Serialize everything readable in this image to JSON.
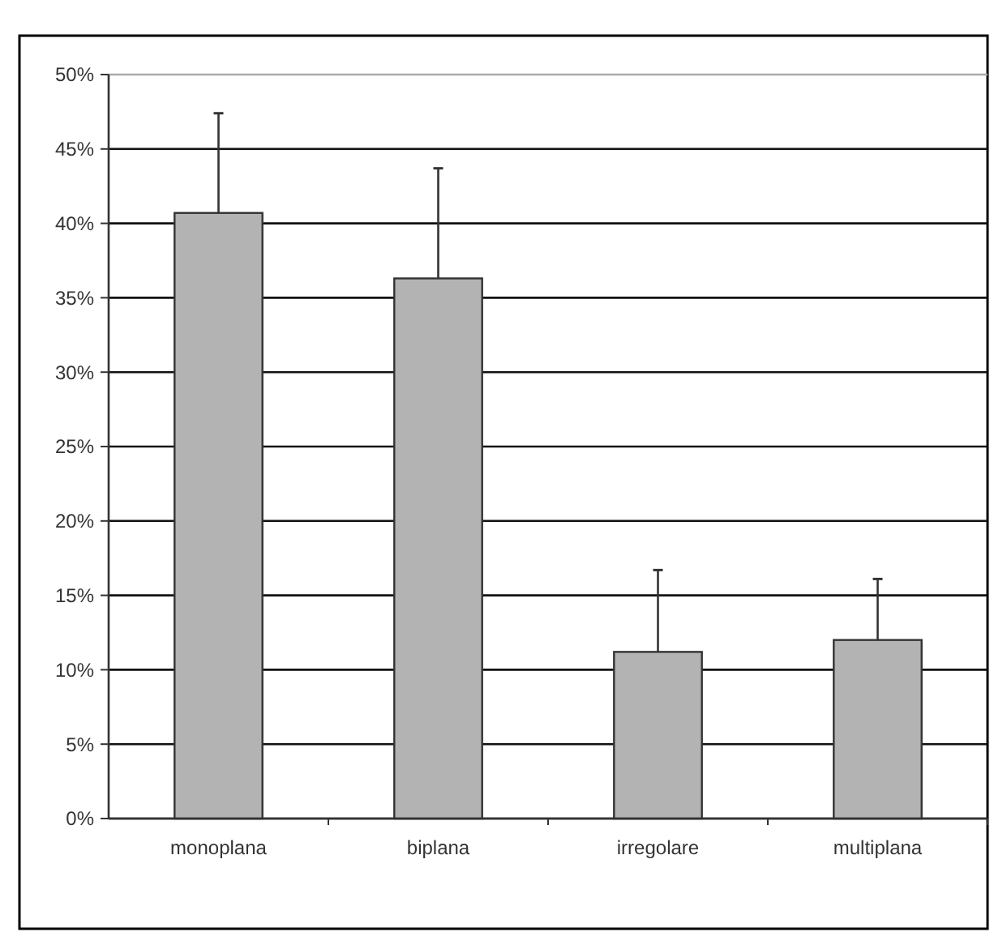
{
  "chart_data": {
    "type": "bar",
    "categories": [
      "monoplana",
      "biplana",
      "irregolare",
      "multiplana"
    ],
    "values": [
      40.7,
      36.3,
      11.2,
      12.0
    ],
    "errors": [
      [
        40.7,
        47.4
      ],
      [
        36.3,
        43.7
      ],
      [
        11.2,
        16.7
      ],
      [
        12.0,
        16.1
      ]
    ],
    "color": "#b3b3b3",
    "ylim": [
      0,
      50
    ],
    "yticks": [
      {
        "value": 0,
        "label": "0%"
      },
      {
        "value": 5,
        "label": "5%"
      },
      {
        "value": 10,
        "label": "10%"
      },
      {
        "value": 15,
        "label": "15%"
      },
      {
        "value": 20,
        "label": "20%"
      },
      {
        "value": 25,
        "label": "25%"
      },
      {
        "value": 30,
        "label": "30%"
      },
      {
        "value": 35,
        "label": "35%"
      },
      {
        "value": 40,
        "label": "40%"
      },
      {
        "value": 45,
        "label": "45%"
      },
      {
        "value": 50,
        "label": "50%"
      }
    ],
    "grid": "y"
  }
}
